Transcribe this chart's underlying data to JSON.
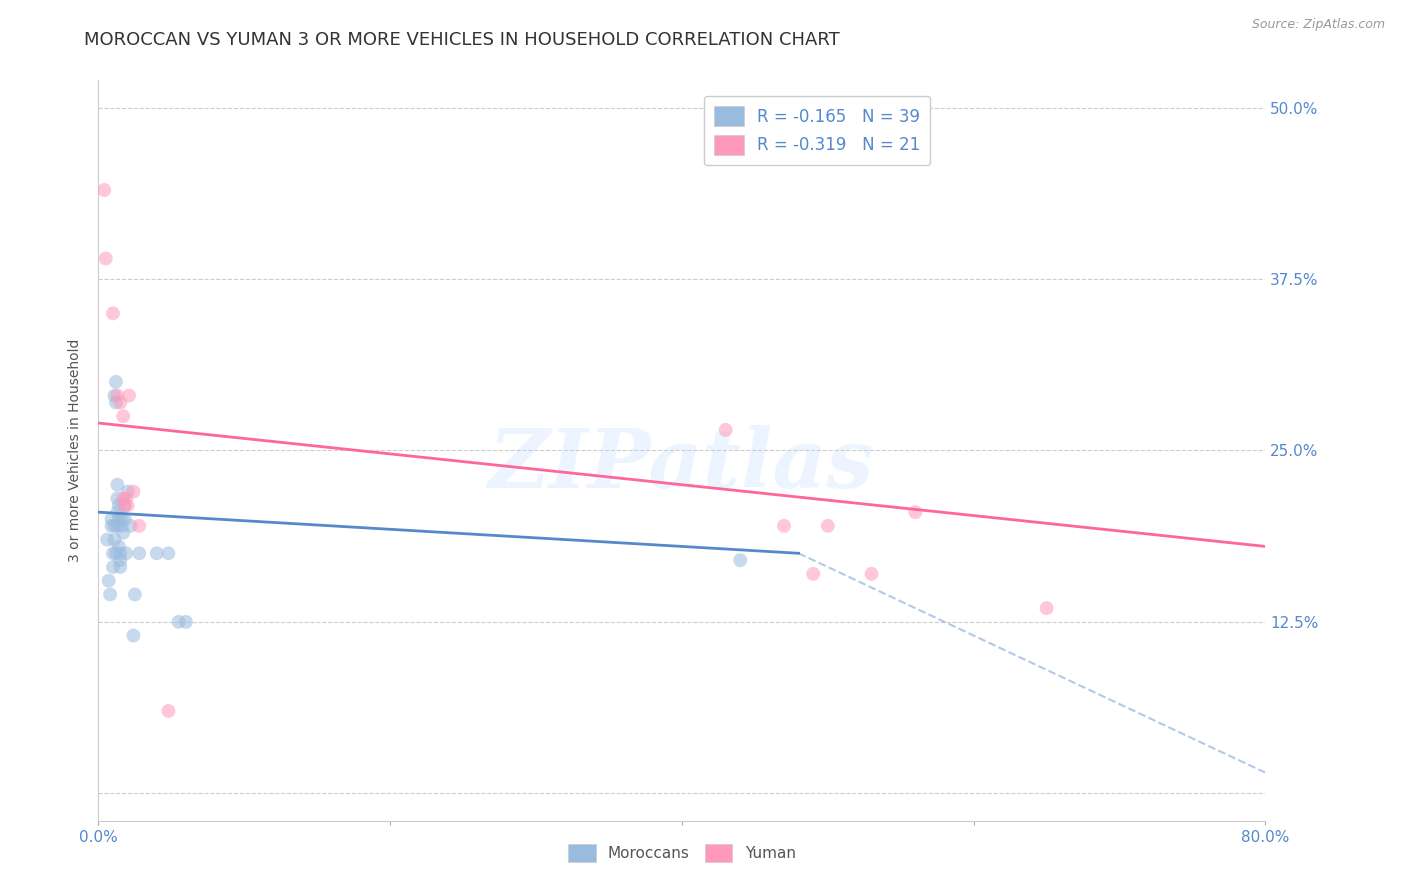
{
  "title": "MOROCCAN VS YUMAN 3 OR MORE VEHICLES IN HOUSEHOLD CORRELATION CHART",
  "source": "Source: ZipAtlas.com",
  "ylabel": "3 or more Vehicles in Household",
  "watermark": "ZIPatlas",
  "xlim": [
    0.0,
    0.8
  ],
  "ylim": [
    -0.02,
    0.52
  ],
  "ylim_plot": [
    0.0,
    0.5
  ],
  "yticks": [
    0.0,
    0.125,
    0.25,
    0.375,
    0.5
  ],
  "ytick_labels": [
    "",
    "12.5%",
    "25.0%",
    "37.5%",
    "50.0%"
  ],
  "xticks": [
    0.0,
    0.2,
    0.4,
    0.6,
    0.8
  ],
  "xtick_labels": [
    "0.0%",
    "",
    "",
    "",
    "80.0%"
  ],
  "legend_moroccan": "R = -0.165   N = 39",
  "legend_yuman": "R = -0.319   N = 21",
  "color_moroccan": "#99BBDD",
  "color_yuman": "#FF99BB",
  "color_moroccan_line": "#5588CC",
  "color_yuman_line": "#FF6699",
  "background_color": "#FFFFFF",
  "grid_color": "#CCCCCC",
  "tick_color": "#5588CC",
  "title_fontsize": 13,
  "label_fontsize": 10,
  "tick_fontsize": 11,
  "marker_size": 100,
  "marker_alpha": 0.55,
  "moroccan_x": [
    0.006,
    0.007,
    0.008,
    0.009,
    0.009,
    0.01,
    0.01,
    0.011,
    0.011,
    0.011,
    0.012,
    0.012,
    0.012,
    0.013,
    0.013,
    0.013,
    0.013,
    0.014,
    0.014,
    0.014,
    0.015,
    0.015,
    0.015,
    0.016,
    0.016,
    0.017,
    0.018,
    0.018,
    0.019,
    0.02,
    0.022,
    0.024,
    0.025,
    0.028,
    0.04,
    0.048,
    0.055,
    0.06,
    0.44
  ],
  "moroccan_y": [
    0.185,
    0.155,
    0.145,
    0.195,
    0.2,
    0.175,
    0.165,
    0.185,
    0.195,
    0.29,
    0.3,
    0.285,
    0.175,
    0.195,
    0.205,
    0.215,
    0.225,
    0.21,
    0.2,
    0.18,
    0.175,
    0.17,
    0.165,
    0.195,
    0.2,
    0.19,
    0.2,
    0.21,
    0.175,
    0.22,
    0.195,
    0.115,
    0.145,
    0.175,
    0.175,
    0.175,
    0.125,
    0.125,
    0.17
  ],
  "yuman_x": [
    0.004,
    0.005,
    0.01,
    0.013,
    0.015,
    0.017,
    0.017,
    0.018,
    0.019,
    0.02,
    0.021,
    0.024,
    0.028,
    0.048,
    0.43,
    0.47,
    0.49,
    0.5,
    0.53,
    0.56,
    0.65
  ],
  "yuman_y": [
    0.44,
    0.39,
    0.35,
    0.29,
    0.285,
    0.275,
    0.215,
    0.21,
    0.215,
    0.21,
    0.29,
    0.22,
    0.195,
    0.06,
    0.265,
    0.195,
    0.16,
    0.195,
    0.16,
    0.205,
    0.135
  ],
  "moroccan_line": [
    0.0,
    0.48,
    0.205,
    0.175
  ],
  "yuman_line": [
    0.0,
    0.8,
    0.27,
    0.18
  ],
  "extrap_line": [
    0.48,
    0.8,
    0.175,
    0.015
  ]
}
